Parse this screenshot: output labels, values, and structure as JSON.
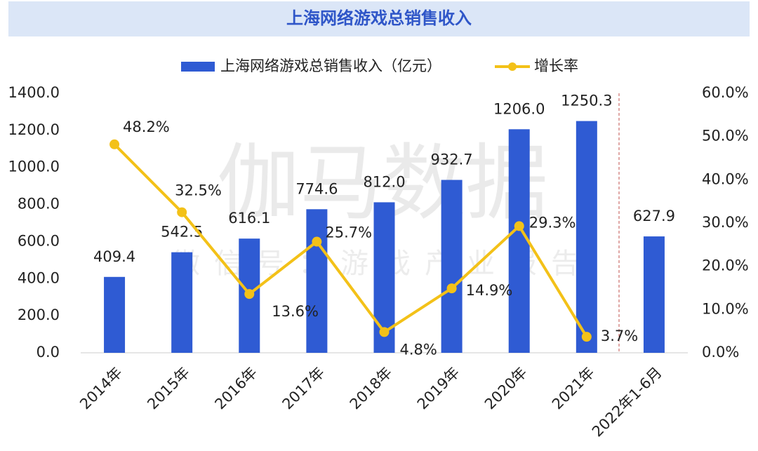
{
  "chart_data": {
    "type": "bar_line",
    "title": "上海网络游戏总销售收入",
    "watermark": "伽马数据",
    "watermark_subtitle": "微信号：游戏产业报告",
    "categories": [
      "2014年",
      "2015年",
      "2016年",
      "2017年",
      "2018年",
      "2019年",
      "2020年",
      "2021年",
      "2022年1-6月"
    ],
    "series": [
      {
        "name": "上海网络游戏总销售收入（亿元）",
        "type": "bar",
        "color": "#2f5bd3",
        "values": [
          409.4,
          542.5,
          616.1,
          774.6,
          812.0,
          932.7,
          1206.0,
          1250.3,
          627.9
        ],
        "value_labels": [
          "409.4",
          "542.5",
          "616.1",
          "774.6",
          "812.0",
          "932.7",
          "1206.0",
          "1250.3",
          "627.9"
        ]
      },
      {
        "name": "增长率",
        "type": "line",
        "axis": "y2",
        "color": "#f3c118",
        "values": [
          48.2,
          32.5,
          13.6,
          25.7,
          4.8,
          14.9,
          29.3,
          3.7,
          null
        ],
        "value_labels": [
          "48.2%",
          "32.5%",
          "13.6%",
          "25.7%",
          "4.8%",
          "14.9%",
          "29.3%",
          "3.7%",
          null
        ]
      }
    ],
    "ylim": [
      0,
      1400
    ],
    "yticks": [
      {
        "value": 0,
        "label": "0.0"
      },
      {
        "value": 200,
        "label": "200.0"
      },
      {
        "value": 400,
        "label": "400.0"
      },
      {
        "value": 600,
        "label": "600.0"
      },
      {
        "value": 800,
        "label": "800.0"
      },
      {
        "value": 1000,
        "label": "1000.0"
      },
      {
        "value": 1200,
        "label": "1200.0"
      },
      {
        "value": 1400,
        "label": "1400.0"
      }
    ],
    "y2lim": [
      0,
      60
    ],
    "y2ticks": [
      {
        "value": 0,
        "label": "0.0%"
      },
      {
        "value": 10,
        "label": "10.0%"
      },
      {
        "value": 20,
        "label": "20.0%"
      },
      {
        "value": 30,
        "label": "30.0%"
      },
      {
        "value": 40,
        "label": "40.0%"
      },
      {
        "value": 50,
        "label": "50.0%"
      },
      {
        "value": 60,
        "label": "60.0%"
      }
    ],
    "legend": "top",
    "grid": false
  }
}
